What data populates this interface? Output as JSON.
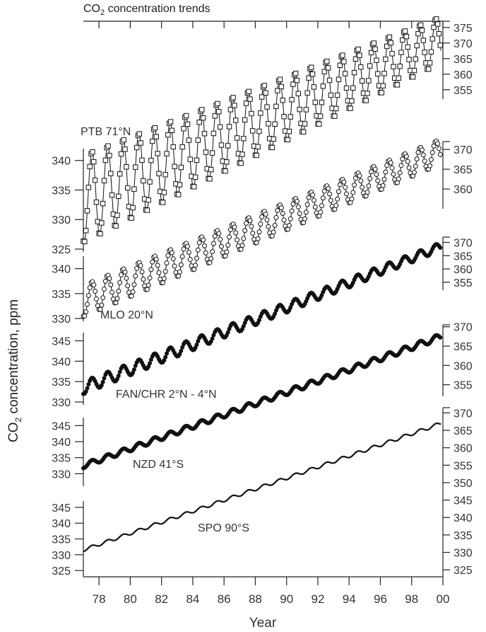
{
  "title": {
    "prefix": "CO",
    "sub": "2",
    "suffix": " concentration trends"
  },
  "xaxis_title": "Year",
  "yaxis_title": {
    "prefix": "CO",
    "sub": "2",
    "suffix": " concentration, ppm"
  },
  "chart_data": {
    "type": "line",
    "title": "CO2 concentration trends",
    "xlabel": "Year",
    "ylabel": "CO2 concentration, ppm",
    "xlim": [
      1977,
      2000
    ],
    "x_ticks": [
      1978,
      1980,
      1982,
      1984,
      1986,
      1988,
      1990,
      1992,
      1994,
      1996,
      1998,
      2000
    ],
    "x_tick_labels": [
      "78",
      "80",
      "82",
      "84",
      "86",
      "88",
      "90",
      "92",
      "94",
      "96",
      "98",
      "00"
    ],
    "panels": [
      {
        "name": "PTB 71°N",
        "marker": "square",
        "left_ticks": [
          325,
          330,
          335,
          340
        ],
        "right_ticks": [
          355,
          360,
          365,
          370,
          375
        ],
        "series_start": {
          "year": 1977.0,
          "value": 333.5
        },
        "series_end": {
          "year": 1999.9,
          "value": 371.0
        },
        "seasonal_amplitude": 7.5,
        "samples": [
          {
            "year": 1977.1,
            "value": 326
          },
          {
            "year": 1977.8,
            "value": 340
          },
          {
            "year": 1978.3,
            "value": 328
          },
          {
            "year": 1978.9,
            "value": 341
          },
          {
            "year": 1979.5,
            "value": 328
          },
          {
            "year": 1980.8,
            "value": 343
          },
          {
            "year": 1982.3,
            "value": 345
          },
          {
            "year": 1984.3,
            "value": 349
          },
          {
            "year": 1986.3,
            "value": 352
          },
          {
            "year": 1988.3,
            "value": 354
          },
          {
            "year": 1990.3,
            "value": 357
          },
          {
            "year": 1992.3,
            "value": 357
          },
          {
            "year": 1994.3,
            "value": 361
          },
          {
            "year": 1996.3,
            "value": 364
          },
          {
            "year": 1998.3,
            "value": 368
          },
          {
            "year": 1999.3,
            "value": 371
          },
          {
            "year": 1999.9,
            "value": 376
          }
        ]
      },
      {
        "name": "MLO 20°N",
        "marker": "circle-open",
        "left_ticks": [
          330,
          335,
          340
        ],
        "right_ticks": [
          360,
          365,
          370
        ],
        "series_start": {
          "year": 1977.0,
          "value": 333.5
        },
        "series_end": {
          "year": 1999.9,
          "value": 369.5
        },
        "seasonal_amplitude": 3.2
      },
      {
        "name": "FAN/CHR 2°N - 4°N",
        "marker": "circle-filled",
        "left_ticks": [
          330,
          335,
          340,
          345
        ],
        "right_ticks": [
          355,
          360,
          365,
          370
        ],
        "series_start": {
          "year": 1977.0,
          "value": 333.5
        },
        "series_end": {
          "year": 1999.9,
          "value": 368.5
        },
        "seasonal_amplitude": 1.6
      },
      {
        "name": "NZD 41°S",
        "marker": "circle-filled",
        "left_ticks": [
          330,
          335,
          340,
          345
        ],
        "right_ticks": [
          355,
          360,
          365,
          370
        ],
        "series_start": {
          "year": 1977.0,
          "value": 332.5
        },
        "series_end": {
          "year": 1999.9,
          "value": 367.5
        },
        "seasonal_amplitude": 0.8
      },
      {
        "name": "SPO 90°S",
        "marker": "none",
        "left_ticks": [
          325,
          330,
          335,
          340,
          345
        ],
        "right_ticks": [
          325,
          330,
          335,
          340,
          345,
          350,
          355,
          360,
          365,
          370
        ],
        "series_start": {
          "year": 1977.0,
          "value": 331.5
        },
        "series_end": {
          "year": 1999.9,
          "value": 367.0
        },
        "seasonal_amplitude": 0.5
      }
    ]
  }
}
